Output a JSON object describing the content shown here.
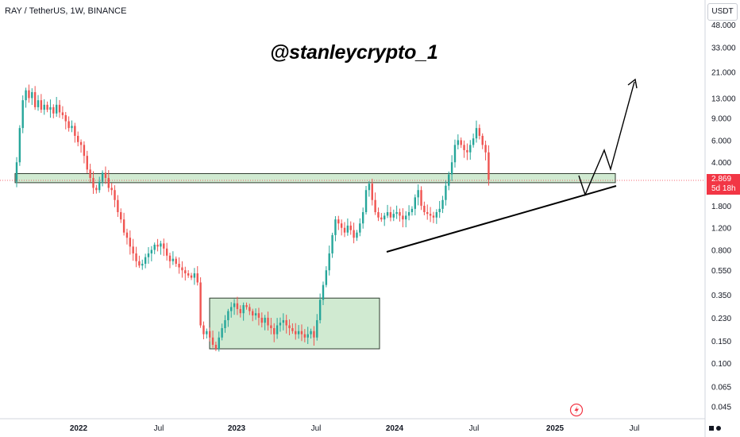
{
  "header": {
    "symbol_line": "RAY / TetherUS, 1W, BINANCE"
  },
  "watermark": "@stanleycrypto_1",
  "currency_button": "USDT",
  "last_price": {
    "value": "2.869",
    "countdown": "5d 18h"
  },
  "colors": {
    "up": "#26a69a",
    "down": "#ef5350",
    "zone_fill": "#c8e6c9",
    "zone_stroke": "#2e3b2e",
    "last_price": "#f23645"
  },
  "icons": {
    "alert": "lightning-icon",
    "logo": "tradingview-logo-icon"
  },
  "chart_data": {
    "type": "candlestick",
    "title": "",
    "scale": "log",
    "y_ticks": [
      "48.000",
      "33.000",
      "21.000",
      "13.000",
      "9.000",
      "6.000",
      "4.000",
      "2.869",
      "1.800",
      "1.200",
      "0.800",
      "0.550",
      "0.350",
      "0.230",
      "0.150",
      "0.100",
      "0.065",
      "0.045"
    ],
    "x_ticks": [
      {
        "label": "2022",
        "bold": true
      },
      {
        "label": "Jul",
        "bold": false
      },
      {
        "label": "2023",
        "bold": true
      },
      {
        "label": "Jul",
        "bold": false
      },
      {
        "label": "2024",
        "bold": true
      },
      {
        "label": "Jul",
        "bold": false
      },
      {
        "label": "2025",
        "bold": true
      },
      {
        "label": "Jul",
        "bold": false
      }
    ],
    "last_price": 2.869,
    "weekly_closes": [
      4.0,
      7.5,
      12.5,
      15.0,
      13.0,
      14.5,
      11.0,
      12.5,
      10.5,
      11.5,
      10.5,
      11.0,
      9.8,
      11.5,
      10.0,
      9.5,
      8.5,
      7.5,
      7.8,
      6.5,
      5.8,
      5.5,
      4.5,
      3.5,
      3.0,
      2.5,
      2.4,
      2.8,
      3.3,
      3.0,
      2.5,
      2.4,
      2.0,
      1.6,
      1.4,
      1.1,
      1.0,
      0.85,
      0.75,
      0.65,
      0.6,
      0.62,
      0.7,
      0.75,
      0.8,
      0.88,
      0.85,
      0.9,
      0.82,
      0.72,
      0.65,
      0.68,
      0.62,
      0.58,
      0.55,
      0.52,
      0.5,
      0.48,
      0.52,
      0.44,
      0.2,
      0.17,
      0.18,
      0.16,
      0.14,
      0.13,
      0.16,
      0.19,
      0.22,
      0.26,
      0.28,
      0.3,
      0.27,
      0.25,
      0.29,
      0.28,
      0.26,
      0.24,
      0.25,
      0.23,
      0.21,
      0.23,
      0.2,
      0.19,
      0.17,
      0.2,
      0.21,
      0.22,
      0.2,
      0.19,
      0.18,
      0.17,
      0.18,
      0.17,
      0.16,
      0.17,
      0.18,
      0.16,
      0.22,
      0.32,
      0.42,
      0.55,
      0.75,
      1.05,
      1.4,
      1.3,
      1.2,
      1.1,
      1.25,
      1.15,
      1.0,
      1.1,
      1.3,
      1.6,
      2.4,
      2.7,
      2.0,
      1.6,
      1.45,
      1.4,
      1.5,
      1.6,
      1.45,
      1.55,
      1.6,
      1.5,
      1.4,
      1.5,
      1.6,
      1.7,
      2.1,
      2.4,
      1.8,
      1.6,
      1.55,
      1.5,
      1.45,
      1.6,
      1.7,
      2.0,
      2.6,
      3.2,
      4.0,
      5.5,
      6.0,
      5.5,
      5.0,
      4.8,
      5.5,
      6.2,
      7.5,
      6.5,
      5.5,
      4.8,
      2.9
    ],
    "zones": [
      {
        "label": "",
        "from_price": 2.75,
        "to_price": 3.25
      },
      {
        "label": "",
        "from_price": 0.13,
        "to_price": 0.33
      }
    ],
    "trendline": {
      "from": [
        1.0,
        0.78
      ],
      "to": [
        1.0,
        2.35
      ]
    },
    "projection": [
      2.869,
      1.9,
      4.3,
      3.2,
      19.0
    ]
  }
}
